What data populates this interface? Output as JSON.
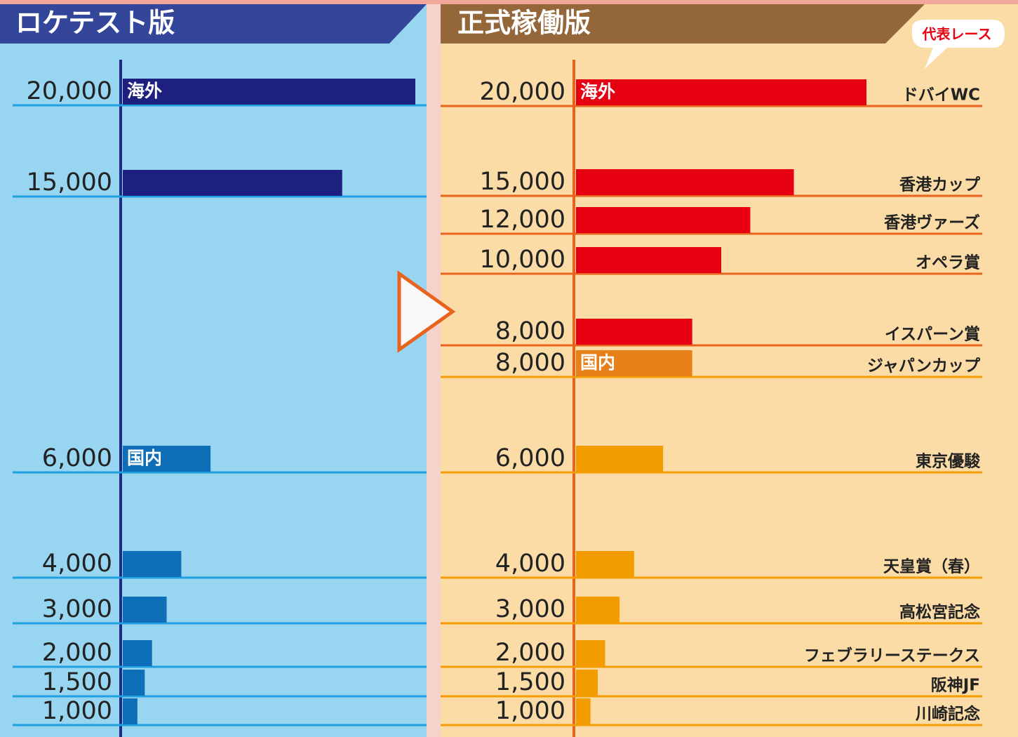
{
  "chart_data": [
    {
      "type": "hbar",
      "title": "ロケテスト版",
      "xlim": [
        0,
        20000
      ],
      "series": [
        {
          "name": "海外",
          "color": "#1e2080",
          "values": [
            20000,
            15000
          ],
          "value_labels": [
            "20,000",
            "15,000"
          ]
        },
        {
          "name": "国内",
          "color": "#0e6fb8",
          "values": [
            6000,
            4000,
            3000,
            2000,
            1500,
            1000
          ],
          "value_labels": [
            "6,000",
            "4,000",
            "3,000",
            "2,000",
            "1,500",
            "1,000"
          ]
        }
      ]
    },
    {
      "type": "hbar",
      "title": "正式稼働版",
      "subtitle": "代表レース",
      "xlim": [
        0,
        20000
      ],
      "series": [
        {
          "name": "海外",
          "color": "#e60012",
          "values": [
            20000,
            15000,
            12000,
            10000,
            8000
          ],
          "value_labels": [
            "20,000",
            "15,000",
            "12,000",
            "10,000",
            "8,000"
          ],
          "categories": [
            "ドバイWC",
            "香港カップ",
            "香港ヴァーズ",
            "オペラ賞",
            "イスパーン賞"
          ]
        },
        {
          "name": "国内",
          "colors": [
            "#e8801a",
            "#f39c00",
            "#f39c00",
            "#f39c00",
            "#f39c00",
            "#f39c00",
            "#f39c00"
          ],
          "values": [
            8000,
            6000,
            4000,
            3000,
            2000,
            1500,
            1000
          ],
          "value_labels": [
            "8,000",
            "6,000",
            "4,000",
            "3,000",
            "2,000",
            "1,500",
            "1,000"
          ],
          "categories": [
            "ジャパンカップ",
            "東京優駿",
            "天皇賞（春）",
            "高松宮記念",
            "フェブラリーステークス",
            "阪神JF",
            "川崎記念"
          ]
        }
      ]
    }
  ]
}
